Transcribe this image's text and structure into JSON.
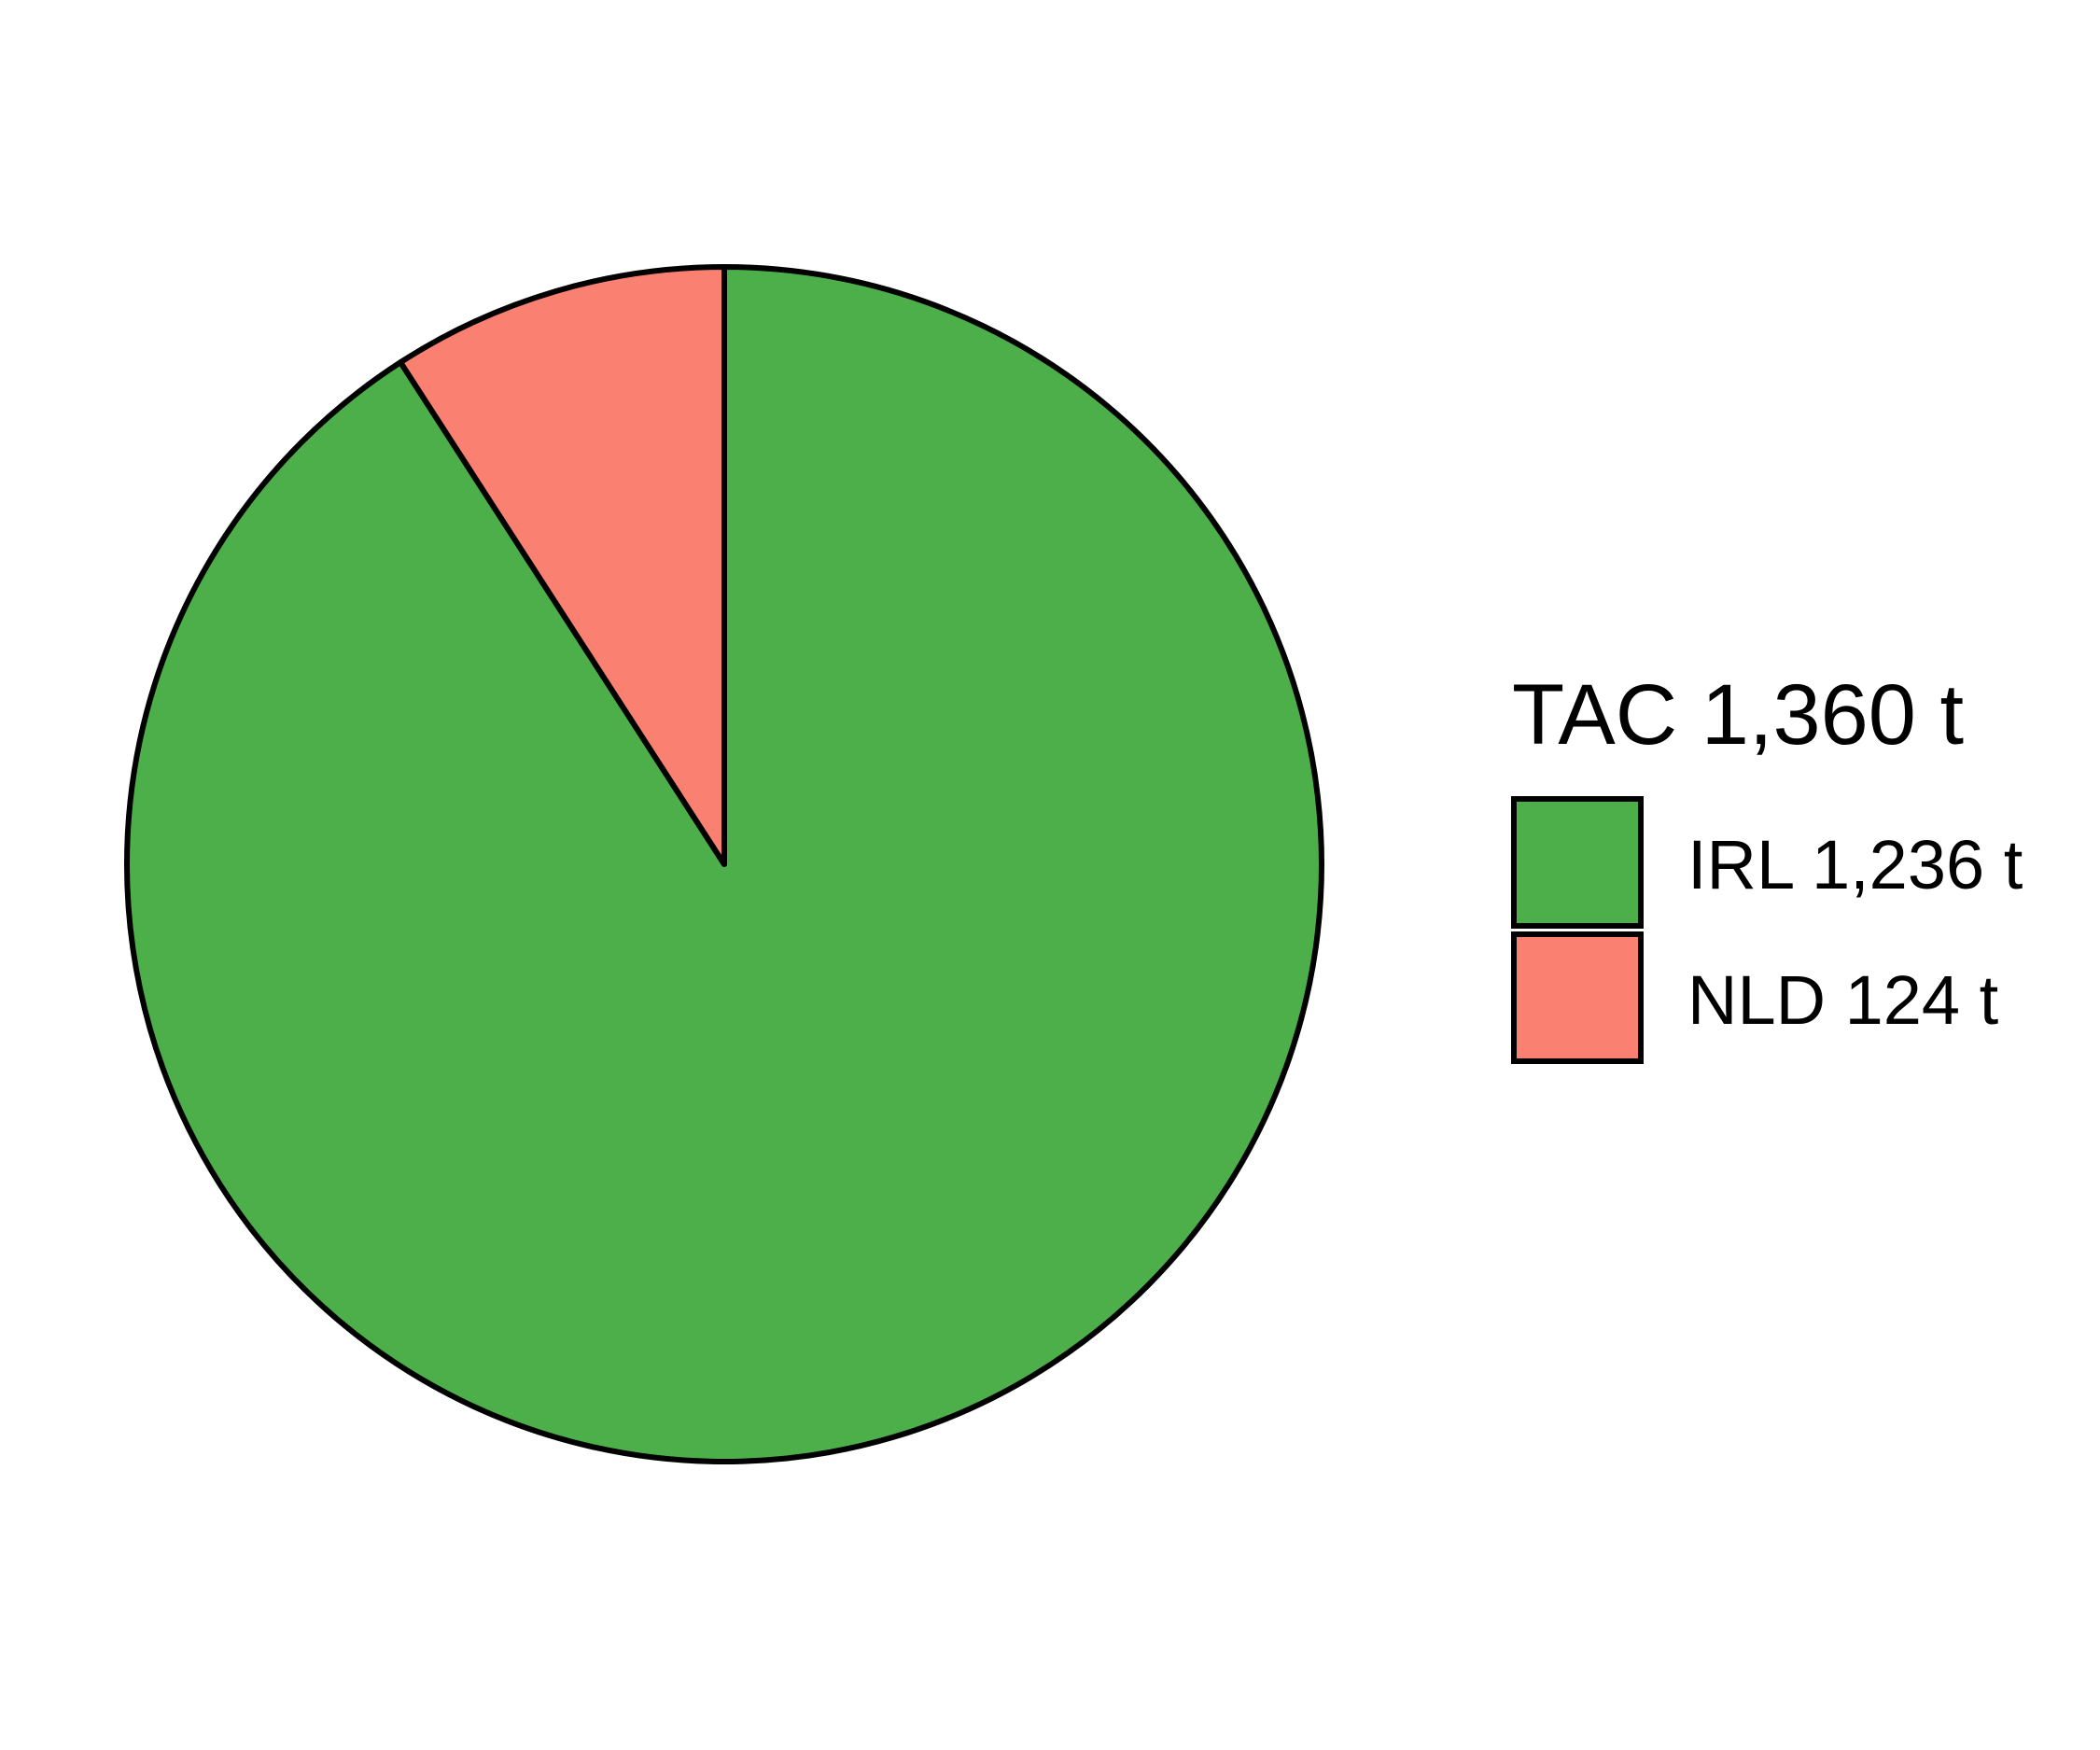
{
  "chart_data": {
    "type": "pie",
    "legend_title": "TAC 1,360 t",
    "legend_position": "right",
    "start_angle": "12 o'clock",
    "direction": "clockwise",
    "slices": [
      {
        "key": "IRL",
        "value": 1236,
        "label": "IRL 1,236 t",
        "color": "#4DAF4A"
      },
      {
        "key": "NLD",
        "value": 124,
        "label": "NLD 124 t",
        "color": "#FA8072"
      }
    ],
    "outline_color": "#000000"
  }
}
